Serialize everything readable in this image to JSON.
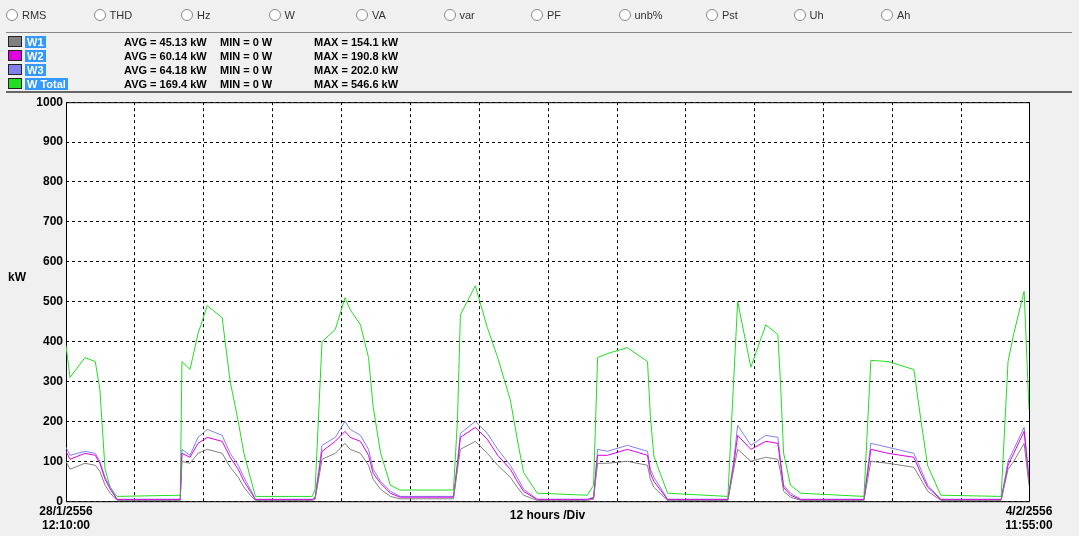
{
  "chart_data": {
    "type": "line",
    "xlabel": "12 hours /Div",
    "ylabel": "kW",
    "x": [
      "--01-28T12:10",
      "--01-28T12:52",
      "--01-28T15:28",
      "--01-28T17:16",
      "--01-28T18:04",
      "--01-28T18:58",
      "--01-28T19:52",
      "--01-28T21:04",
      "--01-29T08:04",
      "--01-29T08:22",
      "--01-29T09:46",
      "--01-29T11:10",
      "--01-29T12:46",
      "--01-29T15:22",
      "--01-29T16:46",
      "--01-29T18:10",
      "--01-29T19:10",
      "--01-29T20:16",
      "--01-29T21:10",
      "--01-30T07:04",
      "--01-30T07:34",
      "--01-30T08:46",
      "--01-30T11:04",
      "--01-30T12:46",
      "--01-30T13:40",
      "--01-30T15:28",
      "--01-30T16:52",
      "--01-30T17:40",
      "--01-30T18:58",
      "--01-30T20:40",
      "--01-30T22:22",
      "--01-31T07:40",
      "--01-31T08:22",
      "--01-31T08:52",
      "--01-31T11:28",
      "--01-31T13:34",
      "--01-31T15:22",
      "--01-31T17:34",
      "--01-31T18:46",
      "--01-31T19:52",
      "--01-31T22:16",
      "--02-01T06:58",
      "--02-01T08:04",
      "--02-01T08:46",
      "--02-01T10:28",
      "--02-01T13:58",
      "--02-01T17:28",
      "--02-01T17:58",
      "--02-01T18:34",
      "--02-01T20:58",
      "--02-02T07:28",
      "--02-02T08:28",
      "--02-02T09:10",
      "--02-02T11:28",
      "--02-02T14:04",
      "--02-02T16:10",
      "--02-02T16:40",
      "--02-02T17:10",
      "--02-02T18:22",
      "--02-02T20:10",
      "--02-03T07:10",
      "--02-03T08:22",
      "--02-03T11:22",
      "--02-03T15:52",
      "--02-03T17:04",
      "--02-03T18:16",
      "--02-03T20:34",
      "--02-04T07:04",
      "--02-04T08:16",
      "--02-04T09:16",
      "--02-04T11:04",
      "--02-04T11:55"
    ],
    "series": [
      {
        "name": "W1",
        "color": "#808080",
        "values": [
          100,
          80,
          95,
          90,
          75,
          40,
          20,
          2,
          2,
          100,
          95,
          120,
          130,
          120,
          85,
          60,
          35,
          15,
          2,
          2,
          5,
          105,
          120,
          145,
          130,
          120,
          90,
          55,
          30,
          12,
          6,
          6,
          80,
          130,
          150,
          120,
          90,
          60,
          35,
          15,
          2,
          2,
          5,
          95,
          95,
          100,
          90,
          55,
          35,
          2,
          2,
          80,
          130,
          100,
          110,
          105,
          70,
          25,
          10,
          2,
          2,
          100,
          95,
          85,
          55,
          25,
          2,
          2,
          80,
          100,
          145,
          40
        ]
      },
      {
        "name": "W2",
        "color": "#e000e0",
        "values": [
          125,
          105,
          120,
          115,
          95,
          55,
          30,
          4,
          4,
          120,
          110,
          145,
          160,
          150,
          110,
          80,
          50,
          25,
          4,
          4,
          8,
          125,
          150,
          175,
          160,
          150,
          115,
          70,
          45,
          20,
          10,
          10,
          90,
          160,
          185,
          155,
          115,
          80,
          50,
          25,
          4,
          4,
          8,
          115,
          115,
          130,
          115,
          70,
          50,
          4,
          4,
          90,
          165,
          130,
          150,
          145,
          90,
          35,
          15,
          4,
          4,
          130,
          120,
          110,
          70,
          35,
          4,
          4,
          90,
          120,
          175,
          50
        ]
      },
      {
        "name": "W3",
        "color": "#8080f0",
        "values": [
          135,
          115,
          125,
          120,
          100,
          60,
          35,
          5,
          5,
          130,
          115,
          160,
          180,
          165,
          120,
          90,
          60,
          30,
          5,
          5,
          10,
          140,
          160,
          200,
          180,
          165,
          130,
          80,
          50,
          25,
          12,
          12,
          100,
          170,
          200,
          170,
          130,
          90,
          60,
          30,
          5,
          5,
          10,
          130,
          125,
          140,
          125,
          80,
          60,
          5,
          5,
          100,
          190,
          140,
          165,
          160,
          100,
          40,
          20,
          5,
          5,
          145,
          135,
          120,
          80,
          40,
          5,
          5,
          100,
          130,
          185,
          60
        ]
      },
      {
        "name": "W Total",
        "color": "#22dd22",
        "values": [
          390,
          310,
          360,
          350,
          280,
          80,
          35,
          12,
          15,
          350,
          330,
          420,
          490,
          460,
          300,
          200,
          120,
          60,
          12,
          12,
          30,
          400,
          430,
          510,
          480,
          442,
          360,
          237,
          121,
          40,
          28,
          28,
          205,
          467,
          540,
          435,
          360,
          254,
          156,
          72,
          20,
          15,
          40,
          360,
          370,
          385,
          350,
          212,
          113,
          20,
          12,
          303,
          500,
          336,
          442,
          418,
          286,
          121,
          40,
          20,
          12,
          353,
          350,
          330,
          205,
          89,
          15,
          12,
          350,
          420,
          526,
          230
        ]
      }
    ],
    "xlim": [
      "--01-28T12:10",
      "--02-04T11:55"
    ],
    "xticks": [
      {
        "value": "--01-28T12:10",
        "label": "28/1/2556 12:10:00"
      },
      {
        "value": "--01-29T00:10",
        "label": null
      },
      {
        "value": "--01-29T12:10",
        "label": null
      },
      {
        "value": "--01-30T00:10",
        "label": null
      },
      {
        "value": "--01-30T12:10",
        "label": null
      },
      {
        "value": "--01-31T00:10",
        "label": null
      },
      {
        "value": "--01-31T12:10",
        "label": null
      },
      {
        "value": "--02-01T00:10",
        "label": null
      },
      {
        "value": "--02-01T12:10",
        "label": null
      },
      {
        "value": "--02-02T00:10",
        "label": null
      },
      {
        "value": "--02-02T12:10",
        "label": null
      },
      {
        "value": "--02-03T00:10",
        "label": null
      },
      {
        "value": "--02-03T12:10",
        "label": null
      },
      {
        "value": "--02-04T00:10",
        "label": null
      },
      {
        "value": "--02-04T11:55",
        "label": "4/2/2556 11:55:00"
      }
    ],
    "ylim": [
      0,
      1000
    ],
    "yticks": [
      0,
      100,
      200,
      300,
      400,
      500,
      600,
      700,
      800,
      900,
      1000
    ],
    "grid": true,
    "legend": "top left",
    "marker": "none",
    "line_style": "solid",
    "annotations": [
      "AVG = 45.13 kW",
      "MIN = 0 W",
      "MAX = 154.1 kW",
      "AVG = 60.14 kW",
      "MIN = 0 W",
      "MAX = 190.8 kW",
      "AVG = 64.18 kW",
      "MIN = 0 W",
      "MAX = 202.0 kW",
      "AVG = 169.4 kW",
      "MIN = 0 W",
      "MAX = 546.6 kW",
      "RMS",
      "THD",
      "Hz",
      "W",
      "VA",
      "var",
      "PF",
      "unb%",
      "Pst",
      "Uh",
      "Ah"
    ]
  }
}
